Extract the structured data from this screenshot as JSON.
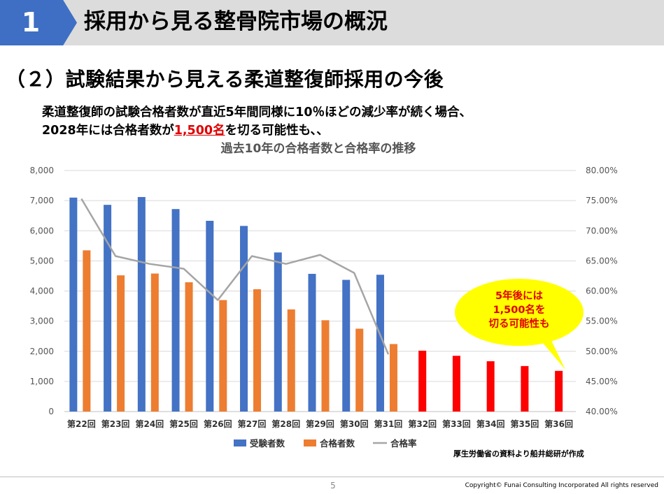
{
  "header": {
    "section_number": "1",
    "title": "採用から見る整骨院市場の概況"
  },
  "sub_heading": "（２）試験結果から見える柔道整復師採用の今後",
  "lead": {
    "line1": "柔道整復師の試験合格者数が直近5年間同様に10％ほどの減少率が続く場合、",
    "line2_before": "2028年には合格者数が",
    "line2_highlight": "1,500名",
    "line2_after": "を切る可能性も、、"
  },
  "chart_data": {
    "type": "bar",
    "title": "過去10年の合格者数と合格率の推移",
    "categories": [
      "第22回",
      "第23回",
      "第24回",
      "第25回",
      "第26回",
      "第27回",
      "第28回",
      "第29回",
      "第30回",
      "第31回",
      "第32回",
      "第33回",
      "第34回",
      "第35回",
      "第36回"
    ],
    "y_ticks": [
      "0",
      "1,000",
      "2,000",
      "3,000",
      "4,000",
      "5,000",
      "6,000",
      "7,000",
      "8,000"
    ],
    "y2_ticks": [
      "40.00%",
      "45.00%",
      "50.00%",
      "55.00%",
      "60.00%",
      "65.00%",
      "70.00%",
      "75.00%",
      "80.00%"
    ],
    "ylim": [
      0,
      8000
    ],
    "y2lim": [
      0.4,
      0.8
    ],
    "series": [
      {
        "name": "受験者数",
        "type": "bar",
        "color": "#4472c4",
        "values": [
          7100,
          6860,
          7120,
          6720,
          6330,
          6160,
          5280,
          4570,
          4370,
          4540,
          null,
          null,
          null,
          null,
          null
        ]
      },
      {
        "name": "合格者数",
        "type": "bar",
        "color": "#ed7d31",
        "values": [
          5350,
          4520,
          4580,
          4290,
          3700,
          4060,
          3390,
          3030,
          2750,
          2240,
          null,
          null,
          null,
          null,
          null
        ]
      },
      {
        "name": "合格率",
        "type": "line",
        "color": "#a5a5a5",
        "axis": "secondary",
        "values": [
          0.753,
          0.658,
          0.645,
          0.637,
          0.585,
          0.658,
          0.645,
          0.66,
          0.63,
          0.495,
          null,
          null,
          null,
          null,
          null
        ]
      },
      {
        "type": "bar",
        "color": "#ff0000",
        "values": [
          null,
          null,
          null,
          null,
          null,
          null,
          null,
          null,
          null,
          null,
          2020,
          1850,
          1670,
          1510,
          1350
        ]
      }
    ],
    "legend": [
      "受験者数",
      "合格者数",
      "合格率"
    ],
    "legend_position": "bottom",
    "callout": {
      "lines": [
        "5年後には",
        "1,500名を",
        "切る可能性も"
      ],
      "fill": "#ffff00",
      "text_color": "#e00000"
    }
  },
  "source_note": "厚生労働省の資料より船井総研が作成",
  "page_number": "5",
  "copyright": "Copyright© Funai Consulting Incorporated All rights reserved"
}
